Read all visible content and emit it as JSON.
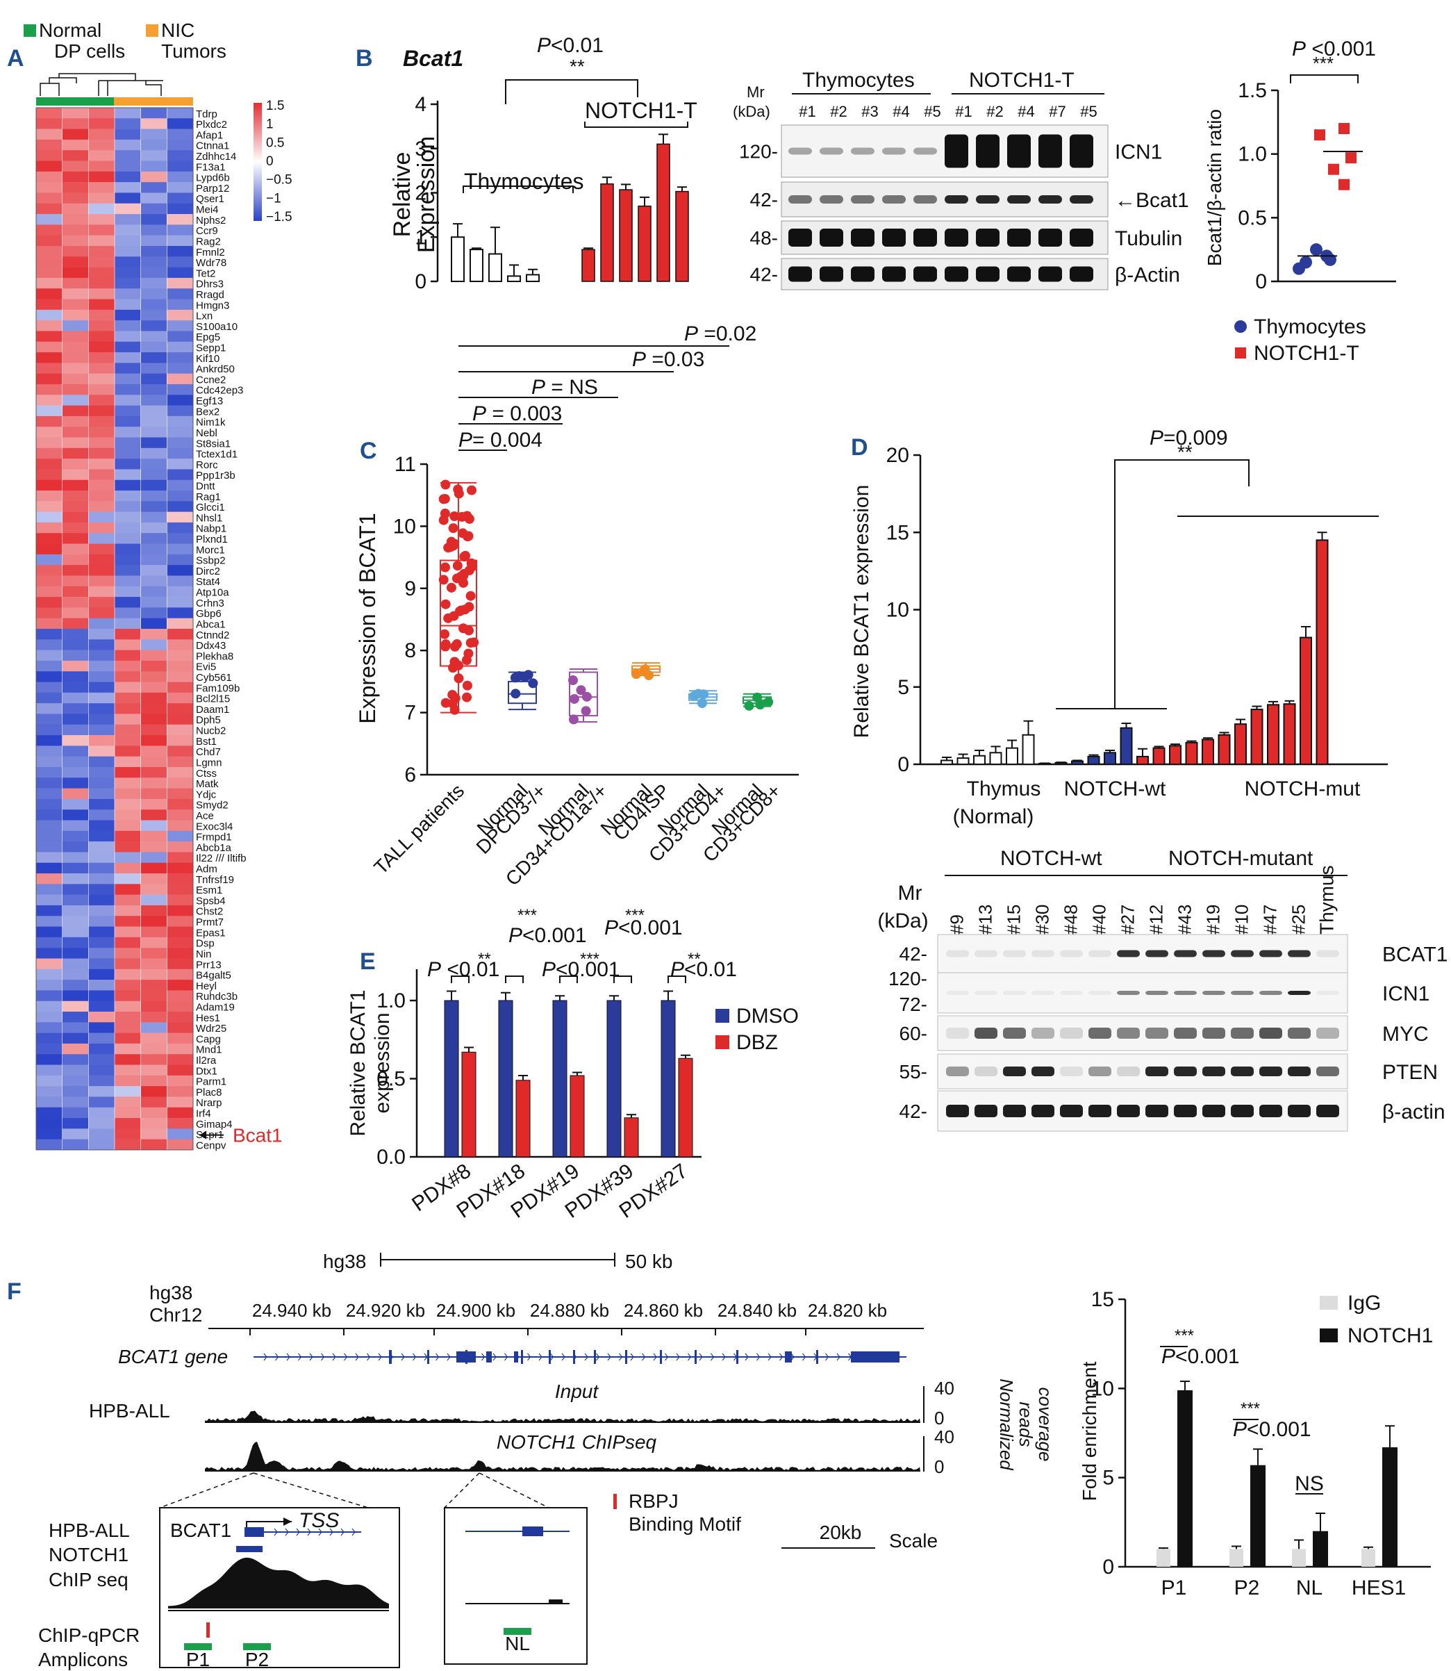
{
  "colors": {
    "red": "#e02a2a",
    "blue": "#2b3b9a",
    "green": "#1aa04a",
    "orange": "#f5a030",
    "black": "#111111",
    "grey": "#dcdcdc",
    "gene_blue": "#1f3a9a"
  },
  "panel_A": {
    "label": "A",
    "groups": [
      {
        "name": "Normal DP cells",
        "lines": [
          "Normal",
          "DP cells"
        ],
        "color": "#1aa04a"
      },
      {
        "name": "NIC Tumors",
        "lines": [
          "NIC",
          "Tumors"
        ],
        "color": "#f5a030"
      }
    ],
    "scale_ticks": [
      "1.5",
      "1",
      "0.5",
      "0",
      "−0.5",
      "−1",
      "−1.5"
    ],
    "genes": [
      "Tdrp",
      "Plxdc2",
      "Afap1",
      "Ctnna1",
      "Zdhhc14",
      "F13a1",
      "Lypd6b",
      "Parp12",
      "Qser1",
      "Mei4",
      "Nphs2",
      "Ccr9",
      "Rag2",
      "Fmnl2",
      "Wdr78",
      "Tet2",
      "Dhrs3",
      "Rragd",
      "Hmgn3",
      "Lxn",
      "S100a10",
      "Epg5",
      "Sepp1",
      "Kif10",
      "Ankrd50",
      "Ccne2",
      "Cdc42ep3",
      "Egf13",
      "Bex2",
      "Nim1k",
      "Nebl",
      "St8sia1",
      "Tctex1d1",
      "Rorc",
      "Ppp1r3b",
      "Dntt",
      "Rag1",
      "Glcci1",
      "Nhsl1",
      "Nabp1",
      "Plxnd1",
      "Morc1",
      "Ssbp2",
      "Dirc2",
      "Stat4",
      "Atp10a",
      "Crhn3",
      "Gbp6",
      "Abca1",
      "Ctnnd2",
      "Ddx43",
      "Plekha8",
      "Evi5",
      "Cyb561",
      "Fam109b",
      "Bcl2l15",
      "Daam1",
      "Dph5",
      "Nucb2",
      "Bst1",
      "Chd7",
      "Lgmn",
      "Ctss",
      "Matk",
      "Ydjc",
      "Smyd2",
      "Ace",
      "Exoc3l4",
      "Frmpd1",
      "Abcb1a",
      "Il22 /// Iltifb",
      "Adm",
      "Tnfrsf19",
      "Esm1",
      "Spsb4",
      "Chst2",
      "Prmt7",
      "Epas1",
      "Dsp",
      "Nin",
      "Prr13",
      "B4galt5",
      "Heyl",
      "Ruhdc3b",
      "Adam19",
      "Hes1",
      "Wdr25",
      "Capg",
      "Mnd1",
      "Il2ra",
      "Dtx1",
      "Parm1",
      "Plac8",
      "Nrarp",
      "Irf4",
      "Gimap4",
      "S1pr1",
      "Cenpv"
    ],
    "highlight": "Bcat1"
  },
  "panel_B": {
    "label": "B",
    "gene": "Bcat1",
    "pvalue": "P<0.01",
    "stars": "**",
    "chart_data": {
      "type": "bar",
      "title": "Bcat1",
      "ylabel": "Relative Expression",
      "yticks": [
        "0",
        "1",
        "2",
        "3",
        "4"
      ],
      "ylim": [
        0,
        4
      ],
      "groups": [
        {
          "name": "Thymocytes",
          "color": "#ffffff",
          "values": [
            1.0,
            0.72,
            0.62,
            0.12,
            0.15
          ],
          "errors": [
            0.3,
            0.03,
            0.6,
            0.25,
            0.12
          ]
        },
        {
          "name": "NOTCH1-T",
          "color": "#e02a2a",
          "values": [
            0.72,
            2.2,
            2.07,
            1.7,
            3.1,
            2.03
          ],
          "errors": [
            0.03,
            0.15,
            0.12,
            0.2,
            0.22,
            0.1
          ]
        }
      ]
    },
    "blot": {
      "mr_label": [
        "Mr",
        "(kDa)"
      ],
      "groups": [
        "Thymocytes",
        "NOTCH1-T"
      ],
      "lanes": [
        "#1",
        "#2",
        "#3",
        "#4",
        "#5",
        "#1",
        "#2",
        "#4",
        "#7",
        "#5"
      ],
      "rows": [
        {
          "name": "ICN1",
          "mw": "120-"
        },
        {
          "name": "←Bcat1",
          "mw": "42-"
        },
        {
          "name": "Tubulin",
          "mw": "48-"
        },
        {
          "name": "β-Actin",
          "mw": "42-"
        }
      ]
    },
    "ratio": {
      "pvalue": "P <0.001",
      "stars": "***",
      "ylabel": "Bcat1/β-actin ratio",
      "yticks": [
        "0",
        "0.5",
        "1.0",
        "1.5"
      ],
      "chart_data": {
        "type": "scatter",
        "ylim": [
          0,
          1.5
        ],
        "series": [
          {
            "name": "Thymocytes",
            "color": "#2b3b9a",
            "values": [
              0.15,
              0.2,
              0.25,
              0.1,
              0.17
            ],
            "median": 0.2
          },
          {
            "name": "NOTCH1-T",
            "color": "#e02a2a",
            "values": [
              1.15,
              1.2,
              0.97,
              0.88,
              0.76
            ],
            "median": 1.02
          }
        ]
      },
      "legend": [
        "Thymocytes",
        "NOTCH1-T"
      ]
    }
  },
  "panel_C": {
    "label": "C",
    "ylabel": "Expression of BCAT1",
    "yticks": [
      "6",
      "7",
      "8",
      "9",
      "10",
      "11"
    ],
    "pvals": [
      {
        "text": "P =0.02"
      },
      {
        "text": "P =0.03"
      },
      {
        "text": "P = NS"
      },
      {
        "text": "P = 0.003"
      },
      {
        "text": "P= 0.004"
      }
    ],
    "categories": [
      "TALL patients",
      "Normal DPCD3-/+",
      "Normal CD34+CD1a-/+",
      "Normal CD4ISP",
      "Normal CD3+CD4+",
      "Normal CD3+CD8+"
    ],
    "xlabels": [
      [
        "TALL patients"
      ],
      [
        "Normal",
        "DPCD3-/+"
      ],
      [
        "Normal",
        "CD34+CD1a-/+"
      ],
      [
        "Normal",
        "CD4ISP"
      ],
      [
        "Normal",
        "CD3+CD4+"
      ],
      [
        "Normal",
        "CD3+CD8+"
      ]
    ],
    "chart_data": {
      "type": "box",
      "ylim": [
        6,
        11
      ],
      "boxes": [
        {
          "name": "TALL patients",
          "color": "#e02a2a",
          "q1": 7.75,
          "median": 8.4,
          "q3": 9.45,
          "min": 7.0,
          "max": 10.7
        },
        {
          "name": "Normal DPCD3-/+",
          "color": "#2b3b9a",
          "q1": 7.15,
          "median": 7.3,
          "q3": 7.5,
          "min": 7.05,
          "max": 7.65
        },
        {
          "name": "Normal CD34+CD1a-/+",
          "color": "#9b4fa5",
          "q1": 6.95,
          "median": 7.25,
          "q3": 7.65,
          "min": 6.85,
          "max": 7.7
        },
        {
          "name": "Normal CD4ISP",
          "color": "#f08a20",
          "q1": 7.65,
          "median": 7.7,
          "q3": 7.75,
          "min": 7.6,
          "max": 7.8
        },
        {
          "name": "Normal CD3+CD4+",
          "color": "#5fa8dc",
          "q1": 7.2,
          "median": 7.25,
          "q3": 7.3,
          "min": 7.15,
          "max": 7.35
        },
        {
          "name": "Normal CD3+CD8+",
          "color": "#1aa04a",
          "q1": 7.15,
          "median": 7.2,
          "q3": 7.25,
          "min": 7.1,
          "max": 7.3
        }
      ]
    }
  },
  "panel_D": {
    "label": "D",
    "pvalue": "P=0.009",
    "stars": "**",
    "ylabel": "Relative BCAT1 expression",
    "yticks": [
      "0",
      "5",
      "10",
      "15",
      "20"
    ],
    "group_labels": [
      [
        "Thymus",
        "(Normal)"
      ],
      [
        "NOTCH-wt"
      ],
      [
        "NOTCH-mut"
      ]
    ],
    "chart_data": {
      "type": "bar",
      "ylim": [
        0,
        20
      ],
      "series": [
        {
          "name": "Thymus (Normal)",
          "color": "#ffffff",
          "values": [
            0.25,
            0.4,
            0.55,
            0.75,
            1.05,
            1.9
          ],
          "errors": [
            0.2,
            0.25,
            0.35,
            0.4,
            0.5,
            0.9
          ]
        },
        {
          "name": "NOTCH-wt",
          "color": "#2b3b9a",
          "values": [
            0.05,
            0.1,
            0.2,
            0.5,
            0.75,
            2.35
          ],
          "errors": [
            0.02,
            0.03,
            0.05,
            0.1,
            0.15,
            0.3
          ]
        },
        {
          "name": "NOTCH-mut",
          "color": "#e02a2a",
          "values": [
            0.5,
            1.05,
            1.2,
            1.4,
            1.6,
            1.9,
            2.6,
            3.55,
            3.85,
            3.9,
            8.2,
            14.5
          ],
          "errors": [
            0.5,
            0.1,
            0.1,
            0.1,
            0.1,
            0.15,
            0.3,
            0.2,
            0.2,
            0.2,
            0.7,
            0.5
          ]
        }
      ]
    },
    "blot": {
      "mr_label": [
        "Mr",
        "(kDa)"
      ],
      "groups": [
        "NOTCH-wt",
        "NOTCH-mutant"
      ],
      "lanes": [
        "#9",
        "#13",
        "#15",
        "#30",
        "#48",
        "#40",
        "#27",
        "#12",
        "#43",
        "#19",
        "#10",
        "#47",
        "#25",
        "Thymus"
      ],
      "rows": [
        {
          "name": "BCAT1",
          "mw": "42-"
        },
        {
          "name": "ICN1",
          "mw": "120-\n72-"
        },
        {
          "name": "MYC",
          "mw": "60-"
        },
        {
          "name": "PTEN",
          "mw": "55-"
        },
        {
          "name": "β-actin",
          "mw": "42-"
        }
      ]
    }
  },
  "panel_E": {
    "label": "E",
    "ylabel": "Relative BCAT1 expression",
    "ylabel_lines": [
      "Relative BCAT1",
      "expression"
    ],
    "yticks": [
      "0.0",
      "0.5",
      "1.0"
    ],
    "legend": [
      "DMSO",
      "DBZ"
    ],
    "pvals": [
      {
        "p": "P <0.01",
        "stars": "**"
      },
      {
        "p": "P<0.001",
        "stars": "***"
      },
      {
        "p": "P<0.001",
        "stars": "***"
      },
      {
        "p": "P<0.001",
        "stars": "***"
      },
      {
        "p": "P<0.01",
        "stars": "**"
      }
    ],
    "chart_data": {
      "type": "bar",
      "categories": [
        "PDX#8",
        "PDX#18",
        "PDX#19",
        "PDX#39",
        "PDX#27"
      ],
      "ylim": [
        0,
        1.2
      ],
      "series": [
        {
          "name": "DMSO",
          "color": "#2b3b9a",
          "values": [
            1.0,
            1.0,
            1.0,
            1.0,
            1.0
          ],
          "errors": [
            0.06,
            0.05,
            0.03,
            0.03,
            0.06
          ]
        },
        {
          "name": "DBZ",
          "color": "#e02a2a",
          "values": [
            0.67,
            0.49,
            0.52,
            0.25,
            0.63
          ],
          "errors": [
            0.03,
            0.03,
            0.02,
            0.02,
            0.02
          ]
        }
      ]
    }
  },
  "panel_F": {
    "label": "F",
    "scalebar": {
      "assembly": "hg38",
      "size": "50 kb"
    },
    "genome": {
      "assembly": "hg38",
      "chrom": "Chr12"
    },
    "ticks": [
      "24.940 kb",
      "24.920 kb",
      "24.900 kb",
      "24.880 kb",
      "24.860 kb",
      "24.840 kb",
      "24.820 kb"
    ],
    "gene": "BCAT1 gene",
    "cell_line": "HPB-ALL",
    "tracks": [
      {
        "name": "Input",
        "max": "40",
        "min": "0"
      },
      {
        "name": "NOTCH1 ChIPseq",
        "max": "40",
        "min": "0"
      }
    ],
    "coverage_label": [
      "Normalized",
      "reads",
      "coverage"
    ],
    "zoom": {
      "left_label": [
        "HPB-ALL",
        "NOTCH1",
        "ChIP seq"
      ],
      "gene": "BCAT1",
      "tss": "TSS",
      "amplicons": [
        "P1",
        "P2"
      ],
      "nl": "NL",
      "amplicon_title": [
        "ChIP-qPCR",
        "Amplicons"
      ]
    },
    "rbpj": [
      "RBPJ",
      "Binding Motif"
    ],
    "scale": {
      "value": "20kb",
      "label": "Scale"
    },
    "chart_data": {
      "type": "bar",
      "ylabel": "Fold enrichment",
      "yticks": [
        "0",
        "5",
        "10",
        "15"
      ],
      "ylim": [
        0,
        15
      ],
      "categories": [
        "P1",
        "P2",
        "NL",
        "HES1"
      ],
      "series": [
        {
          "name": "IgG",
          "color": "#dcdcdc",
          "values": [
            1.0,
            1.0,
            1.0,
            1.0
          ],
          "errors": [
            0.05,
            0.15,
            0.5,
            0.1
          ]
        },
        {
          "name": "NOTCH1",
          "color": "#111111",
          "values": [
            9.9,
            5.7,
            2.0,
            6.7
          ],
          "errors": [
            0.5,
            0.9,
            1.0,
            1.2
          ]
        }
      ],
      "annotations": [
        {
          "stars": "***",
          "p": "P<0.001"
        },
        {
          "stars": "***",
          "p": "P<0.001"
        },
        {
          "stars": "",
          "p": "NS"
        }
      ]
    }
  }
}
